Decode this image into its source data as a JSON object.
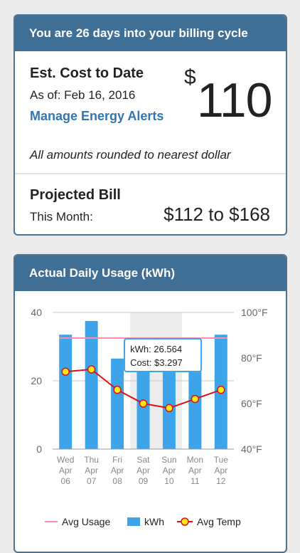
{
  "billing": {
    "header": "You are 26 days into your billing cycle",
    "est_title": "Est. Cost to Date",
    "as_of": "As of: Feb 16, 2016",
    "manage_link": "Manage Energy Alerts",
    "currency": "$",
    "cost": "110",
    "rounding_note": "All amounts rounded to nearest dollar",
    "projected_title": "Projected Bill",
    "projected_label": "This Month:",
    "projected_range": "$112 to $168"
  },
  "usage": {
    "header": "Actual Daily Usage (kWh)",
    "tooltip": {
      "kwh": "kWh: 26.564",
      "cost": "Cost: $3.297"
    }
  },
  "chart_data": {
    "type": "bar",
    "categories": [
      "Wed Apr 06",
      "Thu Apr 07",
      "Fri Apr 08",
      "Sat Apr 09",
      "Sun Apr 10",
      "Mon Apr 11",
      "Tue Apr 12"
    ],
    "day_labels": [
      [
        "Wed",
        "Apr",
        "06"
      ],
      [
        "Thu",
        "Apr",
        "07"
      ],
      [
        "Fri",
        "Apr",
        "08"
      ],
      [
        "Sat",
        "Apr",
        "09"
      ],
      [
        "Sun",
        "Apr",
        "10"
      ],
      [
        "Mon",
        "Apr",
        "11"
      ],
      [
        "Tue",
        "Apr",
        "12"
      ]
    ],
    "series": [
      {
        "name": "kWh",
        "type": "bar",
        "axis": "left",
        "values": [
          33.5,
          37.5,
          26.5,
          32.0,
          30.5,
          30.5,
          33.5
        ],
        "color": "#3ea4ea"
      },
      {
        "name": "Avg Temp",
        "type": "line",
        "axis": "right",
        "values": [
          74,
          75,
          66,
          60,
          58,
          62,
          66
        ],
        "color": "#e01010",
        "marker": "#ffe81a"
      },
      {
        "name": "Avg Usage",
        "type": "line",
        "axis": "left",
        "values": [
          32.5,
          32.5,
          32.5,
          32.5,
          32.5,
          32.5,
          32.5
        ],
        "color": "#f48fb1"
      }
    ],
    "left_ticks": [
      "0",
      "20",
      "40"
    ],
    "left_ylim": [
      0,
      40
    ],
    "right_ticks": [
      "40°F",
      "60°F",
      "80°F",
      "100°F"
    ],
    "right_ylim": [
      40,
      100
    ],
    "highlight_categories": [
      "Sat Apr 09",
      "Sun Apr 10"
    ],
    "selected_category": "Fri Apr 08",
    "grid": true,
    "legend_position": "bottom"
  }
}
